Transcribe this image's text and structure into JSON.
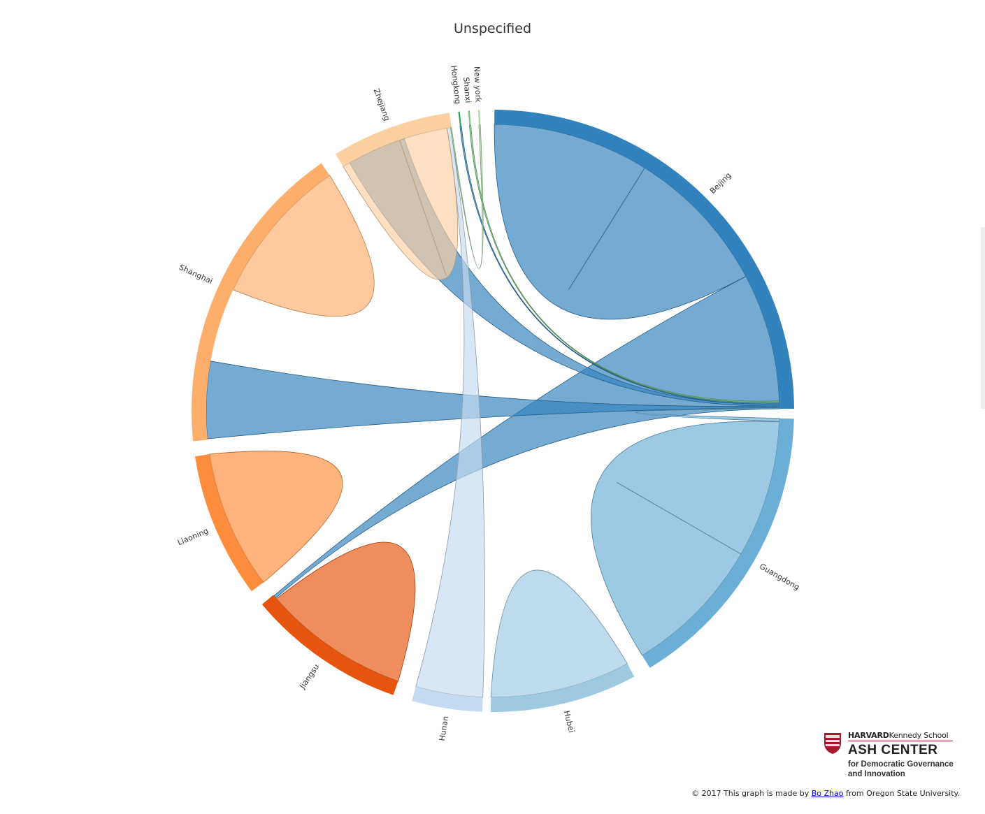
{
  "title": "Unspecified",
  "chart_data": {
    "type": "chord",
    "groups": [
      {
        "name": "Beijing",
        "color": "#3182bd"
      },
      {
        "name": "Guangdong",
        "color": "#6baed6"
      },
      {
        "name": "Hubei",
        "color": "#9ecae1"
      },
      {
        "name": "Hunan",
        "color": "#c6dbef"
      },
      {
        "name": "Jiangsu",
        "color": "#e6550d"
      },
      {
        "name": "Liaoning",
        "color": "#fd8d3c"
      },
      {
        "name": "Shanghai",
        "color": "#fdae6b"
      },
      {
        "name": "Zhejiang",
        "color": "#fdd0a2"
      },
      {
        "name": "Hongkong",
        "color": "#31a354"
      },
      {
        "name": "Shanxi",
        "color": "#74c476"
      },
      {
        "name": "New york",
        "color": "#a1d99b"
      }
    ]
  },
  "logo": {
    "line1_bold": "HARVARD",
    "line1_rest": "Kennedy School",
    "line2": "ASH CENTER",
    "line3": "for Democratic Governance",
    "line4": "and Innovation"
  },
  "footer": {
    "prefix": "© 2017 This graph is made by ",
    "link_text": "Bo Zhao",
    "suffix": " from Oregon State University."
  }
}
